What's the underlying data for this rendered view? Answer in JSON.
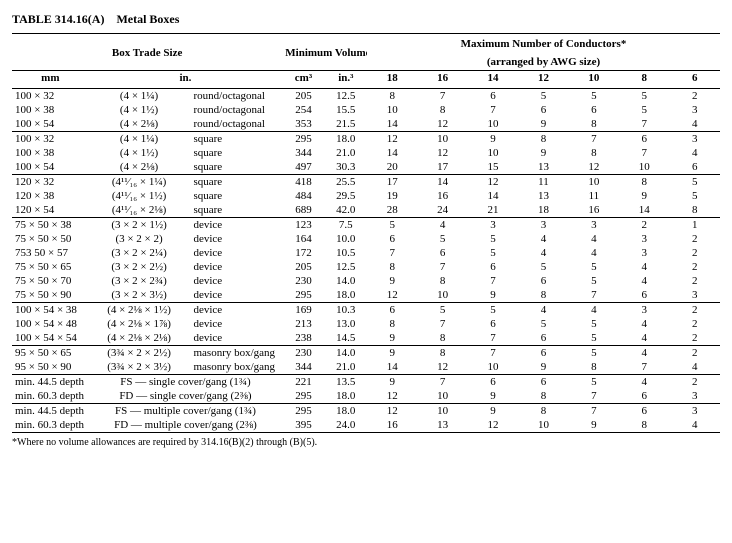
{
  "title": "TABLE 314.16(A) Metal Boxes",
  "header": {
    "box_trade_size": "Box Trade Size",
    "min_volume": "Minimum Volume",
    "max_conductors_line1": "Maximum Number of Conductors*",
    "max_conductors_line2": "(arranged by AWG size)",
    "mm": "mm",
    "in": "in.",
    "cm3": "cm³",
    "in3": "in.³",
    "awg": [
      "18",
      "16",
      "14",
      "12",
      "10",
      "8",
      "6"
    ]
  },
  "groups": [
    [
      {
        "mm": "100 × 32",
        "in": "(4 × 1¼)",
        "shape": "round/octagonal",
        "cm3": "205",
        "in3": "12.5",
        "c": [
          "8",
          "7",
          "6",
          "5",
          "5",
          "5",
          "2"
        ]
      },
      {
        "mm": "100 × 38",
        "in": "(4 × 1½)",
        "shape": "round/octagonal",
        "cm3": "254",
        "in3": "15.5",
        "c": [
          "10",
          "8",
          "7",
          "6",
          "6",
          "5",
          "3"
        ]
      },
      {
        "mm": "100 × 54",
        "in": "(4 × 2⅛)",
        "shape": "round/octagonal",
        "cm3": "353",
        "in3": "21.5",
        "c": [
          "14",
          "12",
          "10",
          "9",
          "8",
          "7",
          "4"
        ]
      }
    ],
    [
      {
        "mm": "100 × 32",
        "in": "(4 × 1¼)",
        "shape": "square",
        "cm3": "295",
        "in3": "18.0",
        "c": [
          "12",
          "10",
          "9",
          "8",
          "7",
          "6",
          "3"
        ]
      },
      {
        "mm": "100 × 38",
        "in": "(4 × 1½)",
        "shape": "square",
        "cm3": "344",
        "in3": "21.0",
        "c": [
          "14",
          "12",
          "10",
          "9",
          "8",
          "7",
          "4"
        ]
      },
      {
        "mm": "100 × 54",
        "in": "(4 × 2⅛)",
        "shape": "square",
        "cm3": "497",
        "in3": "30.3",
        "c": [
          "20",
          "17",
          "15",
          "13",
          "12",
          "10",
          "6"
        ]
      }
    ],
    [
      {
        "mm": "120 × 32",
        "in": "(4¹¹⁄₁₆ × 1¼)",
        "shape": "square",
        "cm3": "418",
        "in3": "25.5",
        "c": [
          "17",
          "14",
          "12",
          "11",
          "10",
          "8",
          "5"
        ]
      },
      {
        "mm": "120 × 38",
        "in": "(4¹¹⁄₁₆ × 1½)",
        "shape": "square",
        "cm3": "484",
        "in3": "29.5",
        "c": [
          "19",
          "16",
          "14",
          "13",
          "11",
          "9",
          "5"
        ]
      },
      {
        "mm": "120 × 54",
        "in": "(4¹¹⁄₁₆ × 2⅛)",
        "shape": "square",
        "cm3": "689",
        "in3": "42.0",
        "c": [
          "28",
          "24",
          "21",
          "18",
          "16",
          "14",
          "8"
        ]
      }
    ],
    [
      {
        "mm": "75 × 50 × 38",
        "in": "(3 × 2 × 1½)",
        "shape": "device",
        "cm3": "123",
        "in3": "7.5",
        "c": [
          "5",
          "4",
          "3",
          "3",
          "3",
          "2",
          "1"
        ]
      },
      {
        "mm": "75 × 50 × 50",
        "in": "(3 × 2 × 2)",
        "shape": "device",
        "cm3": "164",
        "in3": "10.0",
        "c": [
          "6",
          "5",
          "5",
          "4",
          "4",
          "3",
          "2"
        ]
      },
      {
        "mm": "753 50 × 57",
        "in": "(3 × 2 × 2¼)",
        "shape": "device",
        "cm3": "172",
        "in3": "10.5",
        "c": [
          "7",
          "6",
          "5",
          "4",
          "4",
          "3",
          "2"
        ]
      },
      {
        "mm": "75 × 50 × 65",
        "in": "(3 × 2 × 2½)",
        "shape": "device",
        "cm3": "205",
        "in3": "12.5",
        "c": [
          "8",
          "7",
          "6",
          "5",
          "5",
          "4",
          "2"
        ]
      },
      {
        "mm": "75 × 50 × 70",
        "in": "(3 × 2 × 2¾)",
        "shape": "device",
        "cm3": "230",
        "in3": "14.0",
        "c": [
          "9",
          "8",
          "7",
          "6",
          "5",
          "4",
          "2"
        ]
      },
      {
        "mm": "75 × 50 × 90",
        "in": "(3 × 2 × 3½)",
        "shape": "device",
        "cm3": "295",
        "in3": "18.0",
        "c": [
          "12",
          "10",
          "9",
          "8",
          "7",
          "6",
          "3"
        ]
      }
    ],
    [
      {
        "mm": "100 × 54 × 38",
        "in": "(4 × 2⅛ × 1½)",
        "shape": "device",
        "cm3": "169",
        "in3": "10.3",
        "c": [
          "6",
          "5",
          "5",
          "4",
          "4",
          "3",
          "2"
        ]
      },
      {
        "mm": "100 × 54 × 48",
        "in": "(4 × 2⅛ × 1⅞)",
        "shape": "device",
        "cm3": "213",
        "in3": "13.0",
        "c": [
          "8",
          "7",
          "6",
          "5",
          "5",
          "4",
          "2"
        ]
      },
      {
        "mm": "100 × 54 × 54",
        "in": "(4 × 2⅛ × 2⅛)",
        "shape": "device",
        "cm3": "238",
        "in3": "14.5",
        "c": [
          "9",
          "8",
          "7",
          "6",
          "5",
          "4",
          "2"
        ]
      }
    ],
    [
      {
        "mm": "95 × 50 × 65",
        "in": "(3¾ × 2 × 2½)",
        "shape": "masonry box/gang",
        "cm3": "230",
        "in3": "14.0",
        "c": [
          "9",
          "8",
          "7",
          "6",
          "5",
          "4",
          "2"
        ]
      },
      {
        "mm": "95 × 50 × 90",
        "in": "(3¾ × 2 × 3½)",
        "shape": "masonry box/gang",
        "cm3": "344",
        "in3": "21.0",
        "c": [
          "14",
          "12",
          "10",
          "9",
          "8",
          "7",
          "4"
        ]
      }
    ],
    [
      {
        "mm": "min. 44.5 depth",
        "in": "FS — single cover/gang (1¾)",
        "shape": "",
        "cm3": "221",
        "in3": "13.5",
        "c": [
          "9",
          "7",
          "6",
          "6",
          "5",
          "4",
          "2"
        ]
      },
      {
        "mm": "min. 60.3 depth",
        "in": "FD — single cover/gang (2⅜)",
        "shape": "",
        "cm3": "295",
        "in3": "18.0",
        "c": [
          "12",
          "10",
          "9",
          "8",
          "7",
          "6",
          "3"
        ]
      }
    ],
    [
      {
        "mm": "min. 44.5 depth",
        "in": "FS — multiple cover/gang (1¾)",
        "shape": "",
        "cm3": "295",
        "in3": "18.0",
        "c": [
          "12",
          "10",
          "9",
          "8",
          "7",
          "6",
          "3"
        ]
      },
      {
        "mm": "min. 60.3 depth",
        "in": "FD — multiple cover/gang (2⅜)",
        "shape": "",
        "cm3": "395",
        "in3": "24.0",
        "c": [
          "16",
          "13",
          "12",
          "10",
          "9",
          "8",
          "4"
        ]
      }
    ]
  ],
  "footnote": "*Where no volume allowances are required by 314.16(B)(2) through (B)(5).",
  "col_widths": {
    "mm": 76,
    "in": 100,
    "shape": 92,
    "cm3": 42,
    "in3": 42,
    "awg": 50
  },
  "font_family": "Times New Roman",
  "font_size_body": 11,
  "font_size_title": 12,
  "font_size_footnote": 10,
  "rule_color": "#000000",
  "background": "#ffffff"
}
